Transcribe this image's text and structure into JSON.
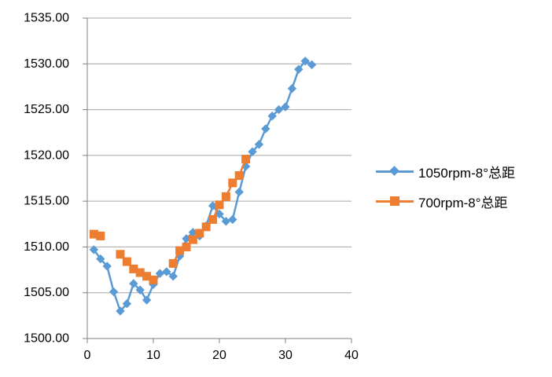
{
  "chart_data": {
    "type": "line",
    "title": "",
    "xlabel": "",
    "ylabel": "",
    "xlim": [
      0,
      40
    ],
    "ylim": [
      1500,
      1535
    ],
    "grid": true,
    "legend_position": "right",
    "colors": {
      "grid": "#A6A6A6",
      "axis": "#808080",
      "tick_text": "#000000",
      "background": "#FFFFFF"
    },
    "x_ticks": [
      {
        "value": 0,
        "label": "0"
      },
      {
        "value": 10,
        "label": "10"
      },
      {
        "value": 20,
        "label": "20"
      },
      {
        "value": 30,
        "label": "30"
      },
      {
        "value": 40,
        "label": "40"
      }
    ],
    "y_ticks": [
      {
        "value": 1500,
        "label": "1500.00"
      },
      {
        "value": 1505,
        "label": "1505.00"
      },
      {
        "value": 1510,
        "label": "1510.00"
      },
      {
        "value": 1515,
        "label": "1515.00"
      },
      {
        "value": 1520,
        "label": "1520.00"
      },
      {
        "value": 1525,
        "label": "1525.00"
      },
      {
        "value": 1530,
        "label": "1530.00"
      },
      {
        "value": 1535,
        "label": "1535.00"
      }
    ],
    "series": [
      {
        "name": "1050rpm-8°总距",
        "color": "#5B9BD5",
        "marker": "diamond",
        "points": [
          [
            1,
            1509.7
          ],
          [
            2,
            1508.7
          ],
          [
            3,
            1507.9
          ],
          [
            4,
            1505.1
          ],
          [
            5,
            1503.0
          ],
          [
            6,
            1503.8
          ],
          [
            7,
            1506.0
          ],
          [
            8,
            1505.3
          ],
          [
            9,
            1504.2
          ],
          [
            10,
            1505.9
          ],
          [
            11,
            1507.1
          ],
          [
            12,
            1507.3
          ],
          [
            13,
            1506.8
          ],
          [
            14,
            1509.0
          ],
          [
            15,
            1510.9
          ],
          [
            16,
            1511.6
          ],
          [
            17,
            1511.2
          ],
          [
            18,
            1512.3
          ],
          [
            19,
            1514.5
          ],
          [
            20,
            1513.6
          ],
          [
            21,
            1512.8
          ],
          [
            22,
            1513.0
          ],
          [
            23,
            1516.0
          ],
          [
            24,
            1518.8
          ],
          [
            25,
            1520.4
          ],
          [
            26,
            1521.2
          ],
          [
            27,
            1522.9
          ],
          [
            28,
            1524.3
          ],
          [
            29,
            1525.0
          ],
          [
            30,
            1525.3
          ],
          [
            31,
            1527.3
          ],
          [
            32,
            1529.4
          ],
          [
            33,
            1530.3
          ],
          [
            34,
            1529.9
          ]
        ]
      },
      {
        "name": "700rpm-8°总距",
        "color": "#ED7D31",
        "marker": "square",
        "points": [
          [
            1,
            1511.4
          ],
          [
            2,
            1511.2
          ],
          [
            5,
            1509.2
          ],
          [
            6,
            1508.4
          ],
          [
            7,
            1507.6
          ],
          [
            8,
            1507.2
          ],
          [
            9,
            1506.8
          ],
          [
            10,
            1506.4
          ],
          [
            13,
            1508.2
          ],
          [
            14,
            1509.6
          ],
          [
            15,
            1510.0
          ],
          [
            16,
            1510.8
          ],
          [
            17,
            1511.5
          ],
          [
            18,
            1512.2
          ],
          [
            19,
            1513.0
          ],
          [
            20,
            1514.6
          ],
          [
            21,
            1515.5
          ],
          [
            22,
            1517.0
          ],
          [
            23,
            1517.8
          ],
          [
            24,
            1519.6
          ]
        ]
      }
    ]
  }
}
